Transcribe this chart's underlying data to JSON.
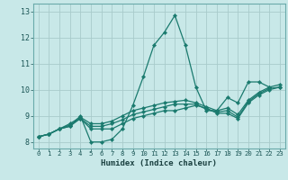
{
  "xlabel": "Humidex (Indice chaleur)",
  "xlim": [
    -0.5,
    23.5
  ],
  "ylim": [
    7.75,
    13.3
  ],
  "xticks": [
    0,
    1,
    2,
    3,
    4,
    5,
    6,
    7,
    8,
    9,
    10,
    11,
    12,
    13,
    14,
    15,
    16,
    17,
    18,
    19,
    20,
    21,
    22,
    23
  ],
  "yticks": [
    8,
    9,
    10,
    11,
    12,
    13
  ],
  "bg_color": "#c8e8e8",
  "line_color": "#1a7a6e",
  "grid_color": "#a8cbcb",
  "series": [
    [
      8.2,
      8.3,
      8.5,
      8.6,
      9.0,
      8.0,
      8.0,
      8.1,
      8.5,
      9.4,
      10.5,
      11.7,
      12.2,
      12.85,
      11.7,
      10.1,
      9.2,
      9.2,
      9.7,
      9.5,
      10.3,
      10.3,
      10.1,
      null
    ],
    [
      8.2,
      8.3,
      8.5,
      8.6,
      8.9,
      8.5,
      8.5,
      8.5,
      8.7,
      8.9,
      9.0,
      9.1,
      9.2,
      9.2,
      9.3,
      9.4,
      9.3,
      9.1,
      9.1,
      8.9,
      9.5,
      9.8,
      10.0,
      10.1
    ],
    [
      8.2,
      8.3,
      8.5,
      8.65,
      8.9,
      8.6,
      8.6,
      8.7,
      8.85,
      9.05,
      9.15,
      9.25,
      9.35,
      9.45,
      9.45,
      9.45,
      9.25,
      9.15,
      9.2,
      8.95,
      9.55,
      9.85,
      10.05,
      10.1
    ],
    [
      8.2,
      8.3,
      8.5,
      8.7,
      8.95,
      8.7,
      8.7,
      8.8,
      9.0,
      9.2,
      9.3,
      9.4,
      9.5,
      9.55,
      9.6,
      9.5,
      9.35,
      9.2,
      9.3,
      9.05,
      9.6,
      9.9,
      10.1,
      10.2
    ]
  ]
}
